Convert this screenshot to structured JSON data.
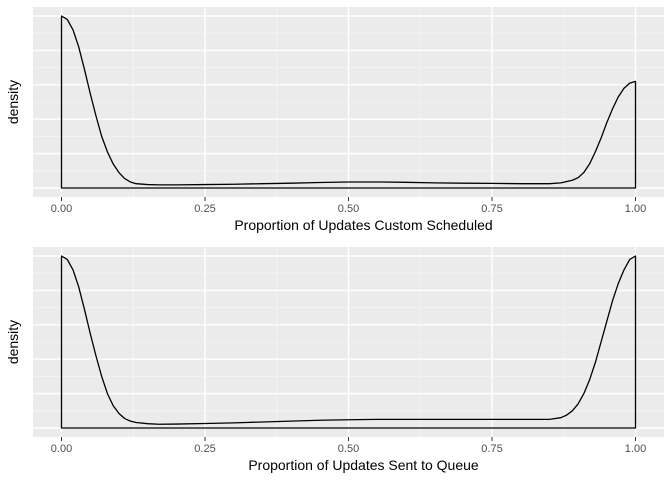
{
  "chart_data": [
    {
      "type": "area",
      "xlabel": "Proportion of Updates Custom Scheduled",
      "ylabel": "density",
      "xlim": [
        0,
        1
      ],
      "ylim": [
        0,
        1.06
      ],
      "x_ticks": [
        "0.00",
        "0.25",
        "0.50",
        "0.75",
        "1.00"
      ],
      "y_ticks": [],
      "grid": true,
      "series": [
        {
          "x": [
            0.0,
            0.01,
            0.02,
            0.03,
            0.04,
            0.05,
            0.06,
            0.07,
            0.08,
            0.09,
            0.1,
            0.11,
            0.12,
            0.13,
            0.15,
            0.17,
            0.2,
            0.25,
            0.3,
            0.35,
            0.4,
            0.45,
            0.5,
            0.55,
            0.6,
            0.65,
            0.7,
            0.75,
            0.8,
            0.85,
            0.87,
            0.89,
            0.9,
            0.91,
            0.92,
            0.93,
            0.94,
            0.95,
            0.96,
            0.97,
            0.98,
            0.99,
            1.0
          ],
          "values": [
            1.0,
            0.98,
            0.92,
            0.82,
            0.69,
            0.55,
            0.42,
            0.3,
            0.21,
            0.14,
            0.09,
            0.055,
            0.035,
            0.025,
            0.02,
            0.018,
            0.018,
            0.02,
            0.022,
            0.025,
            0.028,
            0.032,
            0.035,
            0.035,
            0.033,
            0.03,
            0.028,
            0.027,
            0.025,
            0.025,
            0.03,
            0.045,
            0.06,
            0.09,
            0.14,
            0.21,
            0.29,
            0.38,
            0.46,
            0.53,
            0.58,
            0.61,
            0.62
          ]
        }
      ]
    },
    {
      "type": "area",
      "xlabel": "Proportion of Updates Sent to Queue",
      "ylabel": "density",
      "xlim": [
        0,
        1
      ],
      "ylim": [
        0,
        1.06
      ],
      "x_ticks": [
        "0.00",
        "0.25",
        "0.50",
        "0.75",
        "1.00"
      ],
      "y_ticks": [],
      "grid": true,
      "series": [
        {
          "x": [
            0.0,
            0.01,
            0.02,
            0.03,
            0.04,
            0.05,
            0.06,
            0.07,
            0.08,
            0.09,
            0.1,
            0.11,
            0.12,
            0.13,
            0.15,
            0.17,
            0.2,
            0.25,
            0.3,
            0.35,
            0.4,
            0.45,
            0.5,
            0.55,
            0.6,
            0.65,
            0.7,
            0.75,
            0.8,
            0.85,
            0.87,
            0.88,
            0.89,
            0.9,
            0.91,
            0.92,
            0.93,
            0.94,
            0.95,
            0.96,
            0.97,
            0.98,
            0.99,
            1.0
          ],
          "values": [
            1.0,
            0.98,
            0.92,
            0.82,
            0.69,
            0.55,
            0.42,
            0.3,
            0.2,
            0.13,
            0.085,
            0.055,
            0.04,
            0.032,
            0.025,
            0.022,
            0.023,
            0.026,
            0.03,
            0.035,
            0.04,
            0.045,
            0.048,
            0.05,
            0.05,
            0.05,
            0.05,
            0.05,
            0.05,
            0.05,
            0.06,
            0.075,
            0.1,
            0.14,
            0.2,
            0.28,
            0.38,
            0.5,
            0.62,
            0.74,
            0.84,
            0.92,
            0.98,
            1.0
          ]
        }
      ]
    }
  ]
}
